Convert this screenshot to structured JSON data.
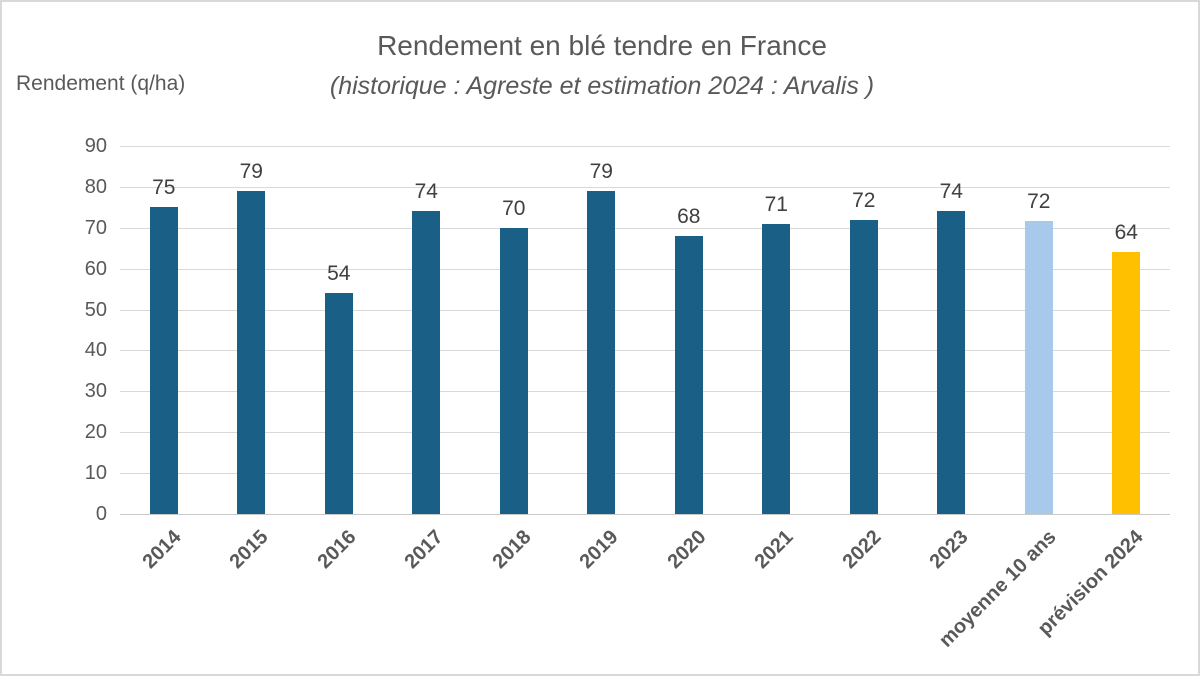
{
  "page": {
    "background": "#ffffff",
    "border_color": "#d9d9d9"
  },
  "chart_data": {
    "type": "bar",
    "title": "Rendement en blé tendre en France",
    "subtitle": "(historique : Agreste et estimation 2024 : Arvalis )",
    "ylabel": "Rendement (q/ha)",
    "xlabel": "",
    "ylim": [
      0,
      90
    ],
    "ytick_step": 10,
    "yticks": [
      0,
      10,
      20,
      30,
      40,
      50,
      60,
      70,
      80,
      90
    ],
    "grid": true,
    "legend": false,
    "categories": [
      "2014",
      "2015",
      "2016",
      "2017",
      "2018",
      "2019",
      "2020",
      "2021",
      "2022",
      "2023",
      "moyenne 10 ans",
      "prévision 2024"
    ],
    "values": [
      75,
      79,
      54,
      74,
      70,
      79,
      68,
      71,
      72,
      74,
      71.6,
      64
    ],
    "data_labels": [
      "75",
      "79",
      "54",
      "74",
      "70",
      "79",
      "68",
      "71",
      "72",
      "74",
      "72",
      "64"
    ],
    "bar_colors": [
      "#1a5f85",
      "#1a5f85",
      "#1a5f85",
      "#1a5f85",
      "#1a5f85",
      "#1a5f85",
      "#1a5f85",
      "#1a5f85",
      "#1a5f85",
      "#1a5f85",
      "#a6c9ec",
      "#ffc000"
    ],
    "colors": {
      "historic_bar": "#1a5f85",
      "average_bar": "#a6c9ec",
      "forecast_bar": "#ffc000",
      "gridline": "#d9d9d9",
      "axis_text": "#595959",
      "data_label_text": "#404040"
    }
  }
}
